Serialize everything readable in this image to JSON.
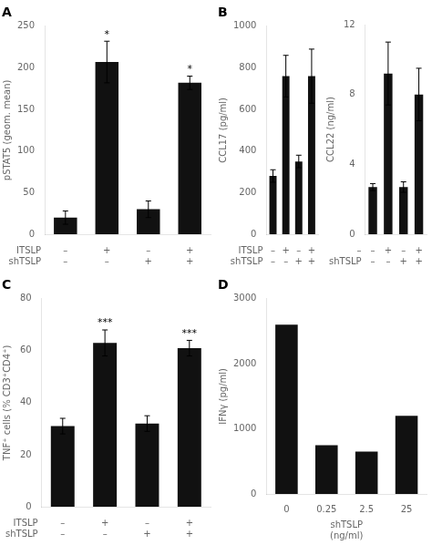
{
  "chart_data": [
    {
      "type": "bar",
      "title": "A",
      "ylabel": "pSTAT5 (geom. mean)",
      "categories": [
        [
          "–",
          "–"
        ],
        [
          "+",
          "–"
        ],
        [
          "–",
          "+"
        ],
        [
          "+",
          "+"
        ]
      ],
      "xlabel_rows": [
        "ITSLP",
        "shTSLP"
      ],
      "values": [
        20,
        207,
        30,
        182
      ],
      "errors": [
        8,
        25,
        10,
        8
      ],
      "significance": [
        null,
        "*",
        null,
        "*"
      ],
      "color": "#111111",
      "ylim": [
        0,
        250
      ],
      "yticks": [
        0,
        50,
        100,
        150,
        200,
        250
      ],
      "grid": false
    },
    {
      "type": "bar",
      "title": "B",
      "ylabel": "CCL17 (pg/ml)",
      "categories": [
        [
          "–",
          "–"
        ],
        [
          "+",
          "–"
        ],
        [
          "–",
          "+"
        ],
        [
          "+",
          "+"
        ]
      ],
      "xlabel_rows": [
        "ITSLP",
        "shTSLP"
      ],
      "values": [
        280,
        760,
        350,
        760
      ],
      "errors": [
        30,
        100,
        30,
        130
      ],
      "color": "#111111",
      "ylim": [
        0,
        1000
      ],
      "yticks": [
        0,
        200,
        400,
        600,
        800,
        1000
      ],
      "grid": false
    },
    {
      "type": "bar",
      "ylabel": "CCL22 (ng/ml)",
      "categories": [
        [
          "–",
          "–"
        ],
        [
          "+",
          "–"
        ],
        [
          "–",
          "+"
        ],
        [
          "+",
          "+"
        ]
      ],
      "xlabel_rows": [
        "–",
        "shTSLP"
      ],
      "values": [
        2.7,
        9.2,
        2.7,
        8.0
      ],
      "errors": [
        0.2,
        1.8,
        0.3,
        1.5
      ],
      "color": "#111111",
      "ylim": [
        0,
        12
      ],
      "yticks": [
        0,
        4,
        8,
        12
      ],
      "grid": false
    },
    {
      "type": "bar",
      "title": "C",
      "ylabel": "TNF⁺ cells (% CD3⁺CD4⁺)",
      "categories": [
        [
          "–",
          "–"
        ],
        [
          "+",
          "–"
        ],
        [
          "–",
          "+"
        ],
        [
          "+",
          "+"
        ]
      ],
      "xlabel_rows": [
        "ITSLP",
        "shTSLP"
      ],
      "values": [
        31,
        63,
        32,
        61
      ],
      "errors": [
        3,
        5,
        3,
        3
      ],
      "significance": [
        null,
        "***",
        null,
        "***"
      ],
      "color": "#111111",
      "ylim": [
        0,
        80
      ],
      "yticks": [
        0,
        20,
        40,
        60,
        80
      ],
      "grid": false
    },
    {
      "type": "bar",
      "title": "D",
      "ylabel": "IFNγ (pg/ml)",
      "categories": [
        "0",
        "0.25",
        "2.5",
        "25"
      ],
      "xlabel": "shTSLP\n(ng/ml)",
      "values": [
        2600,
        750,
        650,
        1200
      ],
      "color": "#111111",
      "ylim": [
        0,
        3000
      ],
      "yticks": [
        0,
        1000,
        2000,
        3000
      ],
      "grid": false
    }
  ]
}
